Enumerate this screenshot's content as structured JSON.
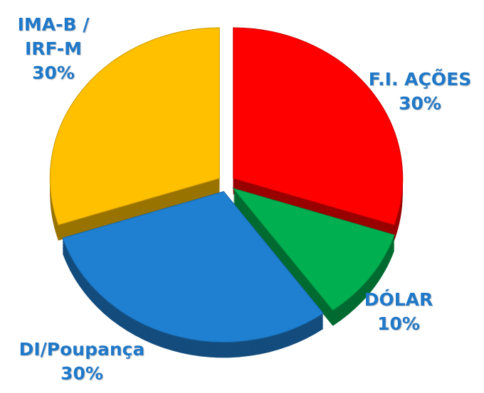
{
  "chart_data": {
    "type": "pie",
    "categories": [
      "F.I. AÇÕES",
      "DÓLAR",
      "DI/Poupança",
      "IMA-B / IRF-M"
    ],
    "values": [
      30,
      10,
      30,
      30
    ],
    "value_labels": [
      "30%",
      "10%",
      "30%",
      "30%"
    ],
    "colors": [
      "#ff0000",
      "#00b050",
      "#1f7fd0",
      "#ffc000"
    ]
  }
}
